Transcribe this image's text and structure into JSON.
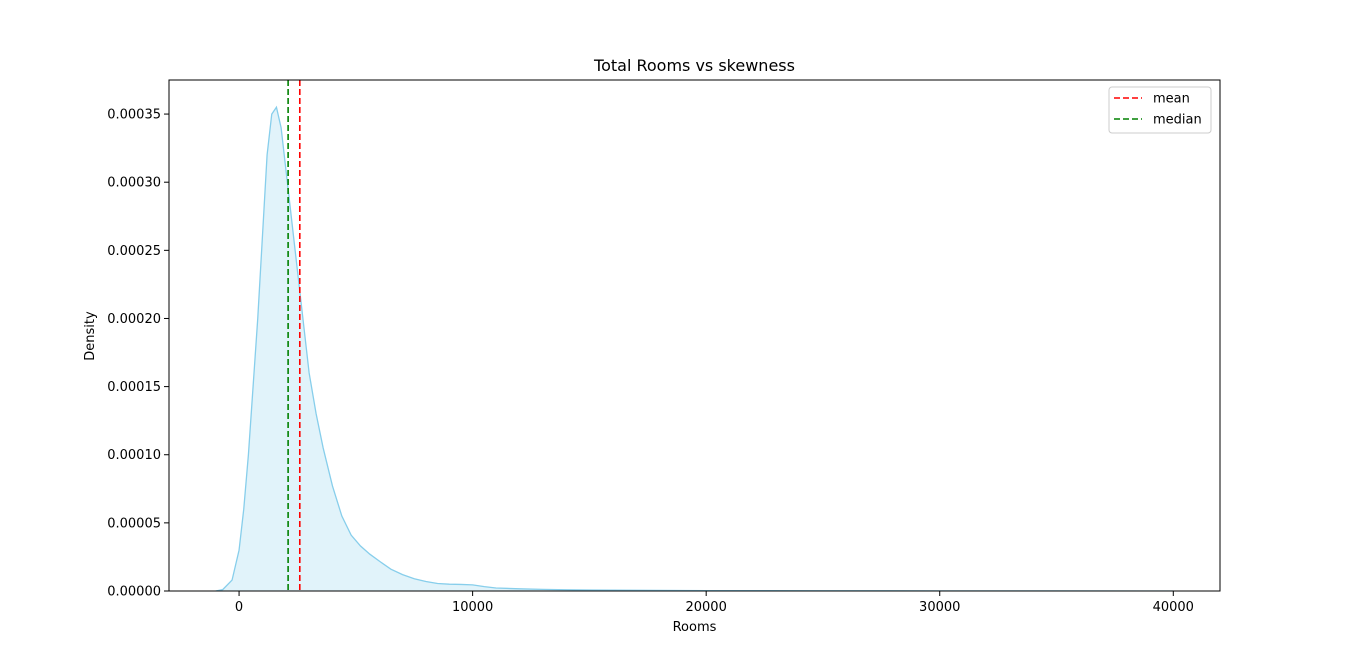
{
  "chart_data": {
    "type": "area",
    "title": "Total Rooms vs skewness",
    "xlabel": "Rooms",
    "ylabel": "Density",
    "xlim": [
      -3000,
      42000
    ],
    "ylim": [
      0,
      0.000375
    ],
    "x_ticks": [
      0,
      10000,
      20000,
      30000,
      40000
    ],
    "x_tick_labels": [
      "0",
      "10000",
      "20000",
      "30000",
      "40000"
    ],
    "y_ticks": [
      0,
      5e-05,
      0.0001,
      0.00015,
      0.0002,
      0.00025,
      0.0003,
      0.00035
    ],
    "y_tick_labels": [
      "0.00000",
      "0.00005",
      "0.00010",
      "0.00015",
      "0.00020",
      "0.00025",
      "0.00030",
      "0.00035"
    ],
    "grid": false,
    "legend_position": "top-right",
    "series": [
      {
        "kind": "kde",
        "color": "#87ceeb",
        "fill_color": "#87ceeb",
        "fill_opacity": 0.25,
        "x": [
          -1000,
          -700,
          -300,
          0,
          200,
          400,
          600,
          800,
          1000,
          1200,
          1400,
          1600,
          1800,
          2000,
          2200,
          2400,
          2600,
          2800,
          3000,
          3300,
          3600,
          4000,
          4400,
          4800,
          5200,
          5600,
          6000,
          6500,
          7000,
          7500,
          8000,
          8500,
          9000,
          9500,
          10000,
          10500,
          11000,
          12000,
          13000,
          14000,
          15000,
          17000,
          20000,
          25000,
          30000,
          35000,
          40000
        ],
        "y": [
          0,
          1e-06,
          8e-06,
          3e-05,
          6e-05,
          0.0001,
          0.00015,
          0.0002,
          0.00026,
          0.00032,
          0.00035,
          0.000355,
          0.00034,
          0.00031,
          0.00028,
          0.00025,
          0.00022,
          0.00019,
          0.00016,
          0.00013,
          0.000105,
          7.7e-05,
          5.5e-05,
          4.1e-05,
          3.3e-05,
          2.7e-05,
          2.2e-05,
          1.6e-05,
          1.2e-05,
          9e-06,
          7e-06,
          5.5e-06,
          5e-06,
          4.8e-06,
          4.5e-06,
          3.2e-06,
          2.2e-06,
          1.6e-06,
          1.2e-06,
          9e-07,
          7e-07,
          5e-07,
          3e-07,
          2e-07,
          1e-07,
          5e-08,
          0
        ]
      }
    ],
    "vlines": [
      {
        "name": "mean",
        "x": 2600,
        "color": "#ff0000",
        "style": "dashed"
      },
      {
        "name": "median",
        "x": 2100,
        "color": "#008000",
        "style": "dashed"
      }
    ]
  }
}
